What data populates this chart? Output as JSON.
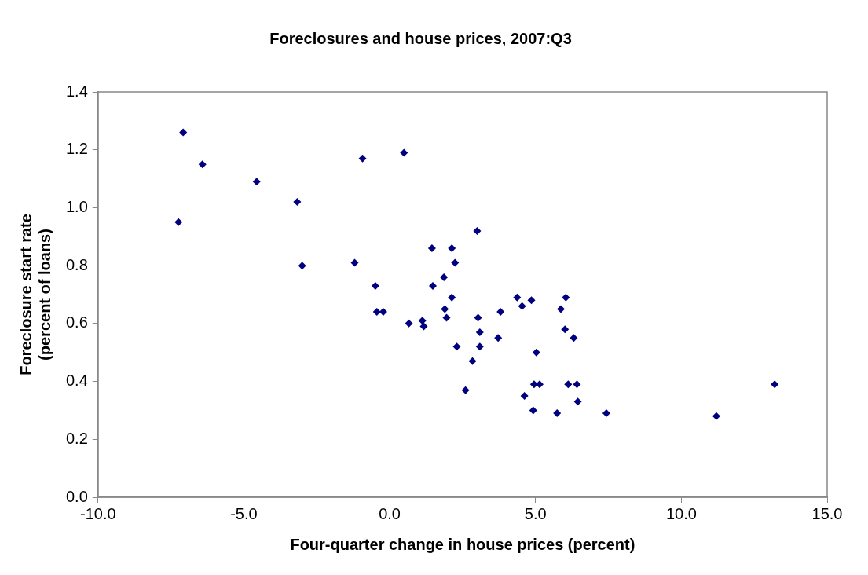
{
  "chart_data": {
    "type": "scatter",
    "title": "Foreclosures and house prices, 2007:Q3",
    "xlabel": "Four-quarter change in house prices (percent)",
    "ylabel": "Foreclosure start rate\n(percent of loans)",
    "x": [
      -7.08,
      -7.24,
      -6.42,
      -4.56,
      -3.17,
      -3.0,
      -0.93,
      0.49,
      -1.2,
      -0.49,
      -0.44,
      -0.22,
      0.66,
      1.12,
      1.17,
      1.45,
      2.13,
      2.24,
      1.86,
      1.48,
      2.13,
      1.89,
      1.95,
      3.0,
      3.03,
      3.09,
      3.09,
      2.3,
      2.84,
      2.6,
      3.8,
      3.72,
      4.37,
      4.54,
      4.86,
      6.04,
      5.87,
      6.01,
      6.31,
      5.03,
      4.95,
      5.14,
      6.12,
      6.42,
      4.62,
      4.92,
      6.45,
      5.74,
      7.43,
      11.2,
      13.2
    ],
    "series": [
      {
        "color": "#000080",
        "values": [
          1.26,
          0.95,
          1.15,
          1.09,
          1.02,
          0.8,
          1.17,
          1.19,
          0.81,
          0.73,
          0.64,
          0.64,
          0.6,
          0.61,
          0.59,
          0.86,
          0.86,
          0.81,
          0.76,
          0.73,
          0.69,
          0.65,
          0.62,
          0.92,
          0.62,
          0.57,
          0.52,
          0.52,
          0.47,
          0.37,
          0.64,
          0.55,
          0.69,
          0.66,
          0.68,
          0.69,
          0.65,
          0.58,
          0.55,
          0.5,
          0.39,
          0.39,
          0.39,
          0.39,
          0.35,
          0.3,
          0.33,
          0.29,
          0.29,
          0.28,
          0.39
        ]
      }
    ],
    "xlim": [
      -10,
      15
    ],
    "xticks": [
      {
        "value": -10,
        "label": "-10.0"
      },
      {
        "value": -5,
        "label": "-5.0"
      },
      {
        "value": 0,
        "label": "0.0"
      },
      {
        "value": 5,
        "label": "5.0"
      },
      {
        "value": 10,
        "label": "10.0"
      },
      {
        "value": 15,
        "label": "15.0"
      }
    ],
    "ylim": [
      0,
      1.4
    ],
    "yticks": [
      {
        "value": 0,
        "label": "0.0"
      },
      {
        "value": 0.2,
        "label": "0.2"
      },
      {
        "value": 0.4,
        "label": "0.4"
      },
      {
        "value": 0.6,
        "label": "0.6"
      },
      {
        "value": 0.8,
        "label": "0.8"
      },
      {
        "value": 1.0,
        "label": "1.0"
      },
      {
        "value": 1.2,
        "label": "1.2"
      },
      {
        "value": 1.4,
        "label": "1.4"
      }
    ],
    "marker": "diamond",
    "grid": false,
    "legend": false
  }
}
